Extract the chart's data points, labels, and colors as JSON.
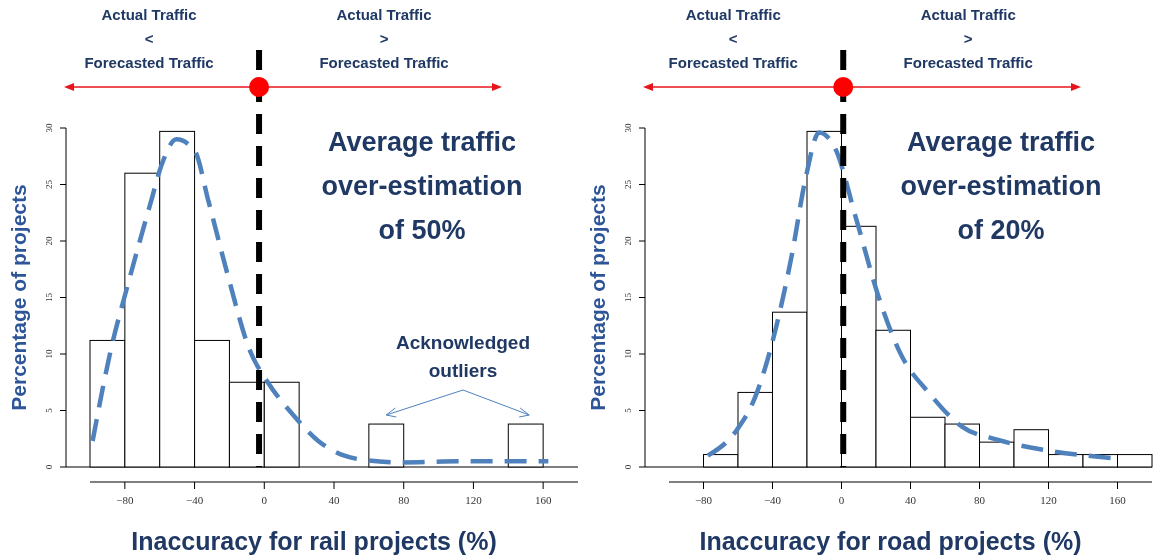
{
  "chart_data": [
    {
      "type": "histogram",
      "xlabel": "Inaccuracy for rail projects (%)",
      "ylabel": "Percentage of projects",
      "bins": [
        -100,
        -80,
        -60,
        -40,
        -20,
        0,
        20,
        40,
        60,
        80,
        100,
        120,
        140,
        160
      ],
      "values": [
        11.2,
        26,
        29.7,
        11.2,
        7.5,
        7.5,
        0,
        0,
        3.8,
        0,
        0,
        0,
        3.8
      ],
      "color": "#ffffff",
      "series": [
        {
          "type": "line",
          "color": "#4f81bd",
          "line_style": "dashed",
          "x": [
            -98.5,
            -88,
            -78,
            -65,
            -59,
            -50.4,
            -40,
            -32,
            -21,
            -8.5,
            2,
            16.6,
            31,
            46,
            58.5,
            79.5,
            111,
            163
          ],
          "values": [
            2.3,
            10.4,
            16.3,
            23.5,
            26.7,
            29,
            28,
            23.5,
            17,
            10.4,
            7.5,
            4.6,
            2.3,
            1,
            0.6,
            0.4,
            0.5,
            0.5
          ]
        }
      ],
      "xlim": [
        -100,
        180
      ],
      "xticks": [
        -80,
        -40,
        0,
        40,
        80,
        120,
        160
      ],
      "ylim": [
        0,
        30
      ],
      "yticks": [
        0,
        5,
        10,
        15,
        20,
        25,
        30
      ],
      "ref_lines": [
        {
          "axis": "x",
          "value": -3,
          "color": "#000000",
          "line_style": "dashed"
        }
      ],
      "annotations": [
        "Actual Traffic\n<\nForecasted Traffic",
        "Actual Traffic\n>\nForecasted Traffic",
        "Average traffic\nover-estimation\nof 50%",
        "Acknowledged\noutliers"
      ]
    },
    {
      "type": "histogram",
      "xlabel": "Inaccuracy for road projects (%)",
      "ylabel": "Percentage of projects",
      "bins": [
        -100,
        -80,
        -60,
        -40,
        -20,
        0,
        20,
        40,
        60,
        80,
        100,
        120,
        140,
        160,
        180
      ],
      "values": [
        0,
        1.1,
        6.6,
        13.7,
        29.7,
        21.3,
        12.1,
        4.4,
        3.8,
        2.2,
        3.3,
        1.1,
        1.1,
        1.1
      ],
      "color": "#ffffff",
      "series": [
        {
          "type": "line",
          "color": "#4f81bd",
          "line_style": "dashed",
          "x": [
            -77.5,
            -60.6,
            -50,
            -39.5,
            -29,
            -20.6,
            -13,
            -4,
            8.8,
            21,
            34,
            51,
            69.6,
            90.8,
            118,
            156
          ],
          "values": [
            1,
            3.3,
            6.2,
            11.4,
            18.6,
            25.7,
            29.6,
            28.3,
            21.8,
            15.3,
            10.1,
            6.5,
            3.6,
            2.4,
            1.5,
            0.8
          ]
        }
      ],
      "xlim": [
        -100,
        180
      ],
      "xticks": [
        -80,
        -40,
        0,
        40,
        80,
        120,
        160
      ],
      "ylim": [
        0,
        30
      ],
      "yticks": [
        0,
        5,
        10,
        15,
        20,
        25,
        30
      ],
      "ref_lines": [
        {
          "axis": "x",
          "value": 1,
          "color": "#000000",
          "line_style": "dashed"
        }
      ],
      "annotations": [
        "Actual Traffic\n<\nForecasted Traffic",
        "Actual Traffic\n>\nForecasted Traffic",
        "Average traffic\nover-estimation\nof 20%"
      ]
    }
  ]
}
